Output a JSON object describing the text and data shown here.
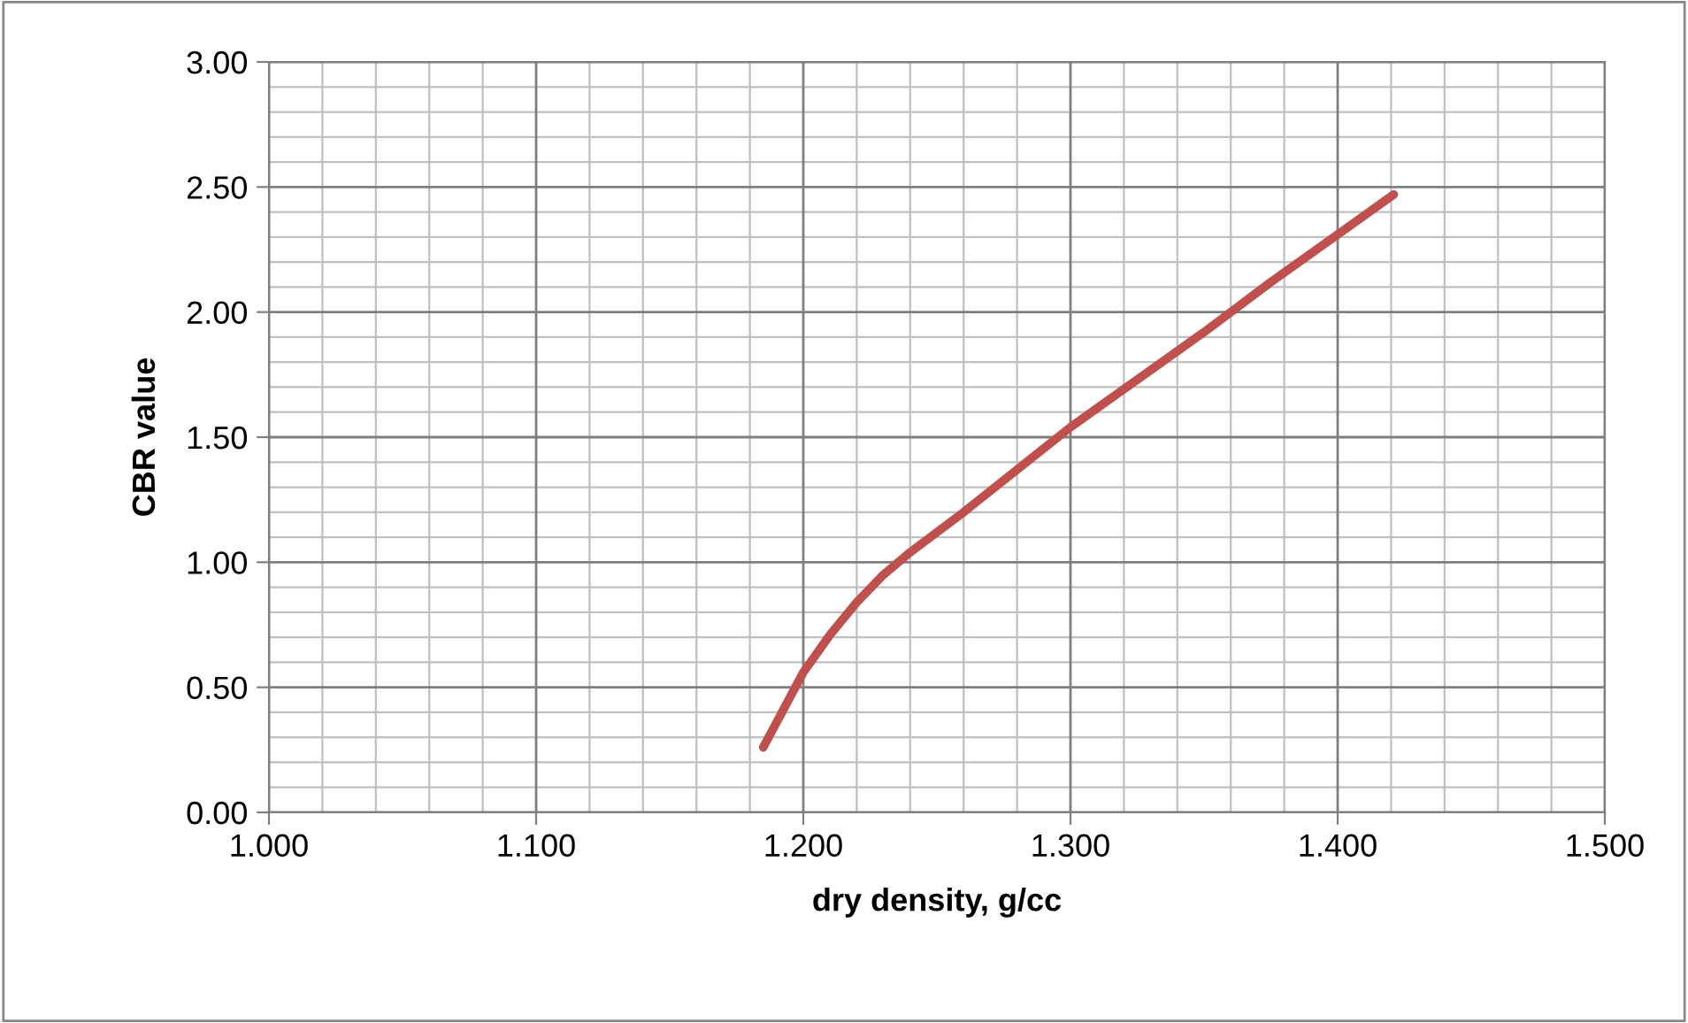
{
  "chart_data": {
    "type": "line",
    "xlabel": "dry density, g/cc",
    "ylabel": "CBR value",
    "series": [
      {
        "color": "#c0504d",
        "x": [
          1.185,
          1.192,
          1.2,
          1.21,
          1.22,
          1.23,
          1.24,
          1.26,
          1.28,
          1.3,
          1.325,
          1.35,
          1.375,
          1.4,
          1.421
        ],
        "values": [
          0.26,
          0.4,
          0.56,
          0.71,
          0.84,
          0.95,
          1.04,
          1.2,
          1.37,
          1.54,
          1.73,
          1.92,
          2.12,
          2.31,
          2.47
        ]
      }
    ],
    "xlim": [
      1.0,
      1.5
    ],
    "ylim": [
      0,
      3
    ],
    "xticks": [
      {
        "value": 1.0,
        "label": "1.000"
      },
      {
        "value": 1.1,
        "label": "1.100"
      },
      {
        "value": 1.2,
        "label": "1.200"
      },
      {
        "value": 1.3,
        "label": "1.300"
      },
      {
        "value": 1.4,
        "label": "1.400"
      },
      {
        "value": 1.5,
        "label": "1.500"
      }
    ],
    "yticks": [
      {
        "value": 0,
        "label": "0.00"
      },
      {
        "value": 0.5,
        "label": "0.50"
      },
      {
        "value": 1.0,
        "label": "1.00"
      },
      {
        "value": 1.5,
        "label": "1.50"
      },
      {
        "value": 2.0,
        "label": "2.00"
      },
      {
        "value": 2.5,
        "label": "2.50"
      },
      {
        "value": 3.0,
        "label": "3.00"
      }
    ],
    "grid": true,
    "legend": false,
    "marker": "none",
    "line_style": "solid"
  }
}
